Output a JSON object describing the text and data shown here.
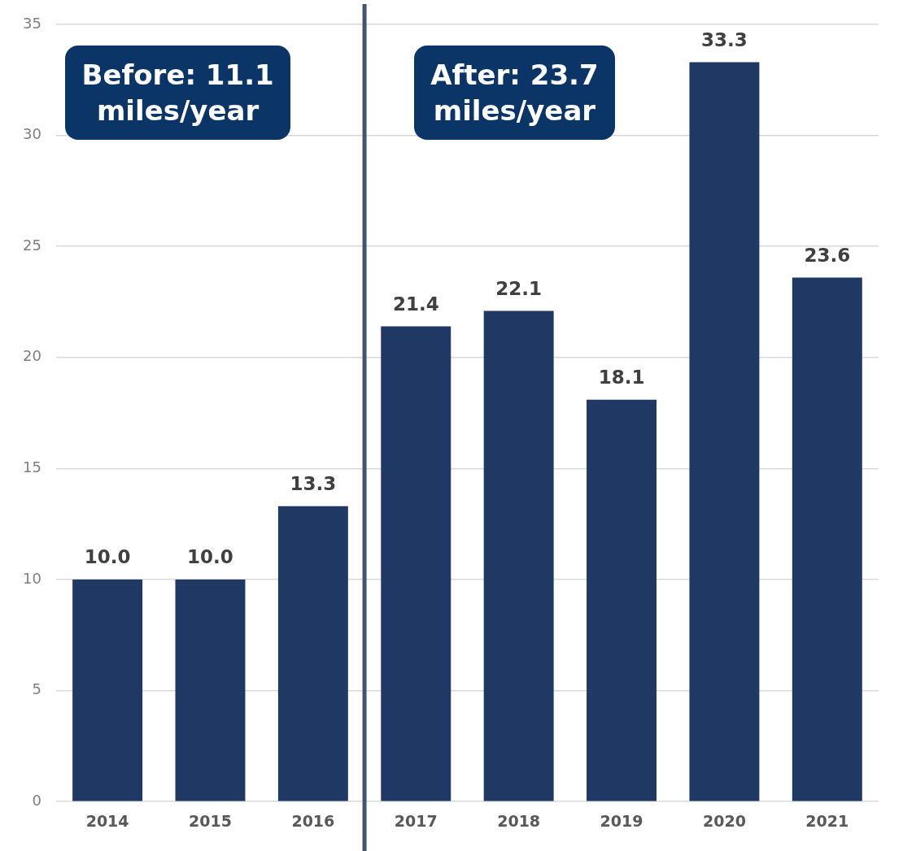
{
  "chart_data": {
    "type": "bar",
    "categories": [
      "2014",
      "2015",
      "2016",
      "2017",
      "2018",
      "2019",
      "2020",
      "2021"
    ],
    "values": [
      10.0,
      10.0,
      13.3,
      21.4,
      22.1,
      18.1,
      33.3,
      23.6
    ],
    "value_labels": [
      "10.0",
      "10.0",
      "13.3",
      "21.4",
      "22.1",
      "18.1",
      "33.3",
      "23.6"
    ],
    "color": "#203864",
    "ref_lines": [
      {
        "axis": "x",
        "value": "2017",
        "color": "#44546a"
      }
    ],
    "ylim": [
      0,
      35
    ],
    "yticks": [
      0,
      5,
      10,
      15,
      20,
      25,
      30,
      35
    ],
    "grid": "y",
    "legend": false,
    "annotations": [
      "Before: 11.1\nmiles/year",
      "After: 23.7\nmiles/year"
    ]
  }
}
